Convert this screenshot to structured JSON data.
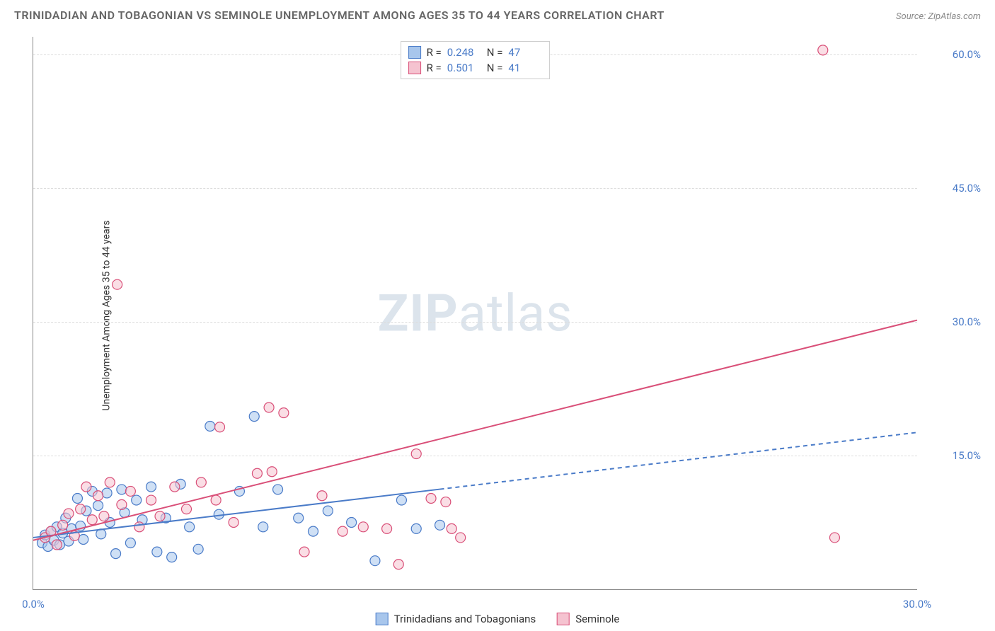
{
  "title": "TRINIDADIAN AND TOBAGONIAN VS SEMINOLE UNEMPLOYMENT AMONG AGES 35 TO 44 YEARS CORRELATION CHART",
  "source": "Source: ZipAtlas.com",
  "watermark_bold": "ZIP",
  "watermark_light": "atlas",
  "y_axis_label": "Unemployment Among Ages 35 to 44 years",
  "colors": {
    "title_text": "#666666",
    "source_text": "#888888",
    "axis_label_text": "#333333",
    "tick_label": "#4a7bc8",
    "grid": "#dddddd",
    "axis_line": "#888888",
    "watermark": "#dce4ec",
    "series_a_fill": "#a8c6ec",
    "series_a_stroke": "#4a7bc8",
    "series_b_fill": "#f5c3d0",
    "series_b_stroke": "#d94f78",
    "background": "#ffffff",
    "stats_border": "#cccccc"
  },
  "chart": {
    "type": "scatter",
    "xlim": [
      0,
      30
    ],
    "ylim": [
      0,
      62
    ],
    "x_ticks": [
      {
        "value": 0,
        "label": "0.0%"
      },
      {
        "value": 30,
        "label": "30.0%"
      }
    ],
    "y_ticks": [
      {
        "value": 15,
        "label": "15.0%"
      },
      {
        "value": 30,
        "label": "30.0%"
      },
      {
        "value": 45,
        "label": "45.0%"
      },
      {
        "value": 60,
        "label": "60.0%"
      }
    ],
    "marker_radius": 7,
    "marker_fill_opacity": 0.55,
    "trendline_width": 2,
    "series": [
      {
        "id": "a",
        "label": "Trinidadians and Tobagonians",
        "r": "0.248",
        "n": "47",
        "fill": "#a8c6ec",
        "stroke": "#4a7bc8",
        "trendline": {
          "solid_to_x": 13.8,
          "y0": 5.8,
          "y30": 17.6
        },
        "points": [
          [
            0.3,
            5.2
          ],
          [
            0.4,
            6.1
          ],
          [
            0.5,
            4.8
          ],
          [
            0.6,
            6.5
          ],
          [
            0.7,
            5.5
          ],
          [
            0.8,
            7.0
          ],
          [
            0.9,
            5.0
          ],
          [
            1.0,
            6.3
          ],
          [
            1.1,
            8.0
          ],
          [
            1.2,
            5.4
          ],
          [
            1.3,
            6.8
          ],
          [
            1.5,
            10.2
          ],
          [
            1.6,
            7.1
          ],
          [
            1.7,
            5.6
          ],
          [
            1.8,
            8.8
          ],
          [
            2.0,
            11.0
          ],
          [
            2.2,
            9.4
          ],
          [
            2.3,
            6.2
          ],
          [
            2.5,
            10.8
          ],
          [
            2.6,
            7.5
          ],
          [
            2.8,
            4.0
          ],
          [
            3.0,
            11.2
          ],
          [
            3.1,
            8.6
          ],
          [
            3.3,
            5.2
          ],
          [
            3.5,
            10.0
          ],
          [
            3.7,
            7.8
          ],
          [
            4.0,
            11.5
          ],
          [
            4.2,
            4.2
          ],
          [
            4.5,
            8.0
          ],
          [
            4.7,
            3.6
          ],
          [
            5.0,
            11.8
          ],
          [
            5.3,
            7.0
          ],
          [
            5.6,
            4.5
          ],
          [
            6.0,
            18.3
          ],
          [
            6.3,
            8.4
          ],
          [
            7.0,
            11.0
          ],
          [
            7.5,
            19.4
          ],
          [
            7.8,
            7.0
          ],
          [
            8.3,
            11.2
          ],
          [
            9.0,
            8.0
          ],
          [
            9.5,
            6.5
          ],
          [
            10.0,
            8.8
          ],
          [
            10.8,
            7.5
          ],
          [
            11.6,
            3.2
          ],
          [
            12.5,
            10.0
          ],
          [
            13.0,
            6.8
          ],
          [
            13.8,
            7.2
          ]
        ]
      },
      {
        "id": "b",
        "label": "Seminole",
        "r": "0.501",
        "n": "41",
        "fill": "#f5c3d0",
        "stroke": "#d94f78",
        "trendline": {
          "solid_to_x": 30,
          "y0": 5.5,
          "y30": 30.2
        },
        "points": [
          [
            0.4,
            5.8
          ],
          [
            0.6,
            6.5
          ],
          [
            0.8,
            5.0
          ],
          [
            1.0,
            7.2
          ],
          [
            1.2,
            8.5
          ],
          [
            1.4,
            6.0
          ],
          [
            1.6,
            9.0
          ],
          [
            1.8,
            11.5
          ],
          [
            2.0,
            7.8
          ],
          [
            2.2,
            10.5
          ],
          [
            2.4,
            8.2
          ],
          [
            2.6,
            12.0
          ],
          [
            2.85,
            34.2
          ],
          [
            3.0,
            9.5
          ],
          [
            3.3,
            11.0
          ],
          [
            3.6,
            7.0
          ],
          [
            4.0,
            10.0
          ],
          [
            4.3,
            8.2
          ],
          [
            4.8,
            11.5
          ],
          [
            5.2,
            9.0
          ],
          [
            5.7,
            12.0
          ],
          [
            6.2,
            10.0
          ],
          [
            6.33,
            18.2
          ],
          [
            6.8,
            7.5
          ],
          [
            7.6,
            13.0
          ],
          [
            8.0,
            20.4
          ],
          [
            8.1,
            13.2
          ],
          [
            8.5,
            19.8
          ],
          [
            9.2,
            4.2
          ],
          [
            9.8,
            10.5
          ],
          [
            10.5,
            6.5
          ],
          [
            11.2,
            7.0
          ],
          [
            12.0,
            6.8
          ],
          [
            12.4,
            2.8
          ],
          [
            13.0,
            15.2
          ],
          [
            13.5,
            10.2
          ],
          [
            14.0,
            9.8
          ],
          [
            14.2,
            6.8
          ],
          [
            14.5,
            5.8
          ],
          [
            26.8,
            60.5
          ],
          [
            27.2,
            5.8
          ]
        ]
      }
    ]
  },
  "legend_box": {
    "label_r": "R =",
    "label_n": "N ="
  }
}
